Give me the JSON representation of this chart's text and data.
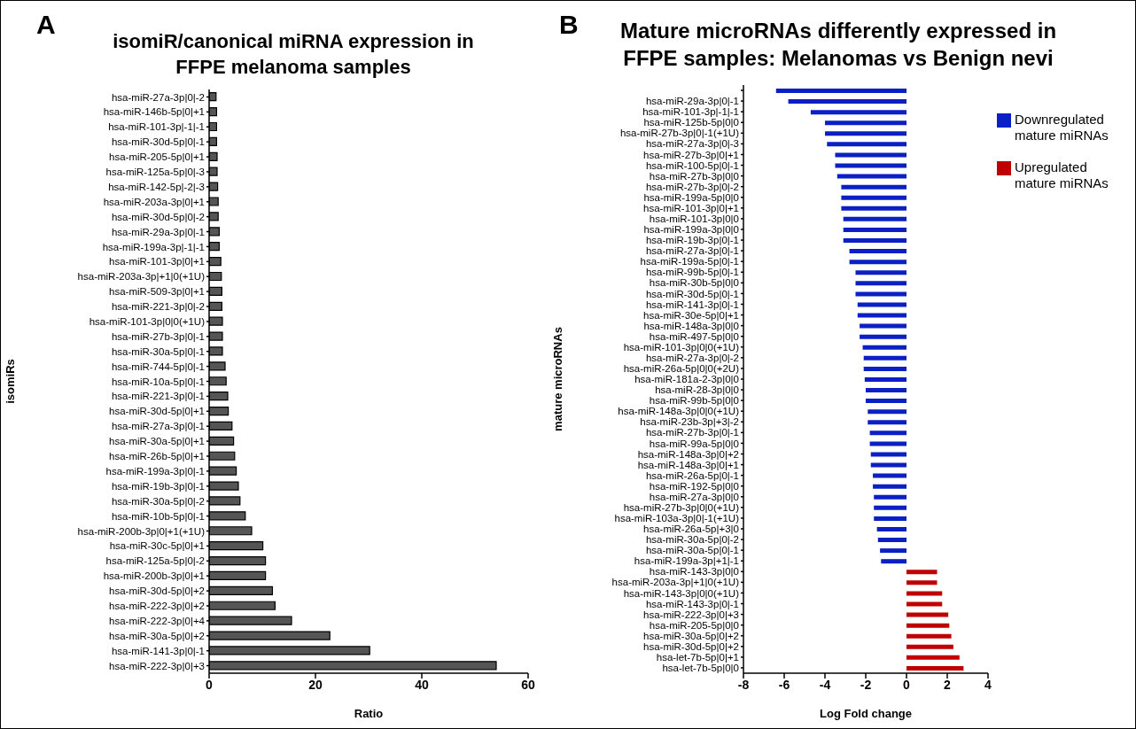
{
  "chart_data": [
    {
      "type": "bar",
      "orientation": "horizontal",
      "title": "isomiR/canonical miRNA expression in FFPE melanoma samples",
      "annotations": [
        "A"
      ],
      "xlabel": "Ratio",
      "ylabel": "isomiRs",
      "categories": [
        "hsa-miR-27a-3p|0|-2",
        "hsa-miR-146b-5p|0|+1",
        "hsa-miR-101-3p|-1|-1",
        "hsa-miR-30d-5p|0|-1",
        "hsa-miR-205-5p|0|+1",
        "hsa-miR-125a-5p|0|-3",
        "hsa-miR-142-5p|-2|-3",
        "hsa-miR-203a-3p|0|+1",
        "hsa-miR-30d-5p|0|-2",
        "hsa-miR-29a-3p|0|-1",
        "hsa-miR-199a-3p|-1|-1",
        "hsa-miR-101-3p|0|+1",
        "hsa-miR-203a-3p|+1|0(+1U)",
        "hsa-miR-509-3p|0|+1",
        "hsa-miR-221-3p|0|-2",
        "hsa-miR-101-3p|0|0(+1U)",
        "hsa-miR-27b-3p|0|-1",
        "hsa-miR-30a-5p|0|-1",
        "hsa-miR-744-5p|0|-1",
        "hsa-miR-10a-5p|0|-1",
        "hsa-miR-221-3p|0|-1",
        "hsa-miR-30d-5p|0|+1",
        "hsa-miR-27a-3p|0|-1",
        "hsa-miR-30a-5p|0|+1",
        "hsa-miR-26b-5p|0|+1",
        "hsa-miR-199a-3p|0|-1",
        "hsa-miR-19b-3p|0|-1",
        "hsa-miR-30a-5p|0|-2",
        "hsa-miR-10b-5p|0|-1",
        "hsa-miR-200b-3p|0|+1(+1U)",
        "hsa-miR-30c-5p|0|+1",
        "hsa-miR-125a-5p|0|-2",
        "hsa-miR-200b-3p|0|+1",
        "hsa-miR-30d-5p|0|+2",
        "hsa-miR-222-3p|0|+2",
        "hsa-miR-222-3p|0|+4",
        "hsa-miR-30a-5p|0|+2",
        "hsa-miR-141-3p|0|-1",
        "hsa-miR-222-3p|0|+3"
      ],
      "values": [
        1.3,
        1.4,
        1.4,
        1.4,
        1.5,
        1.5,
        1.6,
        1.7,
        1.7,
        1.9,
        1.9,
        2.2,
        2.3,
        2.4,
        2.4,
        2.5,
        2.5,
        2.5,
        3.0,
        3.2,
        3.5,
        3.6,
        4.3,
        4.6,
        4.8,
        5.1,
        5.5,
        5.8,
        6.8,
        8.0,
        10.1,
        10.6,
        10.6,
        11.9,
        12.4,
        15.5,
        22.7,
        30.2,
        54.0
      ],
      "color": "#555555",
      "xlim": [
        0,
        60
      ],
      "xticks": [
        0,
        20,
        40,
        60
      ]
    },
    {
      "type": "bar",
      "orientation": "horizontal",
      "stacked": true,
      "title": "Mature microRNAs differently expressed in FFPE samples:  Melanomas vs Benign nevi",
      "annotations": [
        "B"
      ],
      "xlabel": "Log Fold change",
      "ylabel": "mature microRNAs",
      "categories": [
        null,
        "hsa-miR-29a-3p|0|-1",
        "hsa-miR-101-3p|-1|-1",
        "hsa-miR-125b-5p|0|0",
        "hsa-miR-27b-3p|0|-1(+1U)",
        "hsa-miR-27a-3p|0|-3",
        "hsa-miR-27b-3p|0|+1",
        "hsa-miR-100-5p|0|-1",
        "hsa-miR-27b-3p|0|0",
        "hsa-miR-27b-3p|0|-2",
        "hsa-miR-199a-5p|0|0",
        "hsa-miR-101-3p|0|+1",
        "hsa-miR-101-3p|0|0",
        "hsa-miR-199a-3p|0|0",
        "hsa-miR-19b-3p|0|-1",
        "hsa-miR-27a-3p|0|-1",
        "hsa-miR-199a-5p|0|-1",
        "hsa-miR-99b-5p|0|-1",
        "hsa-miR-30b-5p|0|0",
        "hsa-miR-30d-5p|0|-1",
        "hsa-miR-141-3p|0|-1",
        "hsa-miR-30e-5p|0|+1",
        "hsa-miR-148a-3p|0|0",
        "hsa-miR-497-5p|0|0",
        "hsa-miR-101-3p|0|0(+1U)",
        "hsa-miR-27a-3p|0|-2",
        "hsa-miR-26a-5p|0|0(+2U)",
        "hsa-miR-181a-2-3p|0|0",
        "hsa-miR-28-3p|0|0",
        "hsa-miR-99b-5p|0|0",
        "hsa-miR-148a-3p|0|0(+1U)",
        "hsa-miR-23b-3p|+3|-2",
        "hsa-miR-27b-3p|0|-1",
        "hsa-miR-99a-5p|0|0",
        "hsa-miR-148a-3p|0|+2",
        "hsa-miR-148a-3p|0|+1",
        "hsa-miR-26a-5p|0|-1",
        "hsa-miR-192-5p|0|0",
        "hsa-miR-27a-3p|0|0",
        "hsa-miR-27b-3p|0|0(+1U)",
        "hsa-miR-103a-3p|0|-1(+1U)",
        "hsa-miR-26a-5p|+3|0",
        "hsa-miR-30a-5p|0|-2",
        "hsa-miR-30a-5p|0|-1",
        "hsa-miR-199a-3p|+1|-1",
        "hsa-miR-143-3p|0|0",
        "hsa-miR-203a-3p|+1|0(+1U)",
        "hsa-miR-143-3p|0|0(+1U)",
        "hsa-miR-143-3p|0|-1",
        "hsa-miR-222-3p|0|+3",
        "hsa-miR-205-5p|0|0",
        "hsa-miR-30a-5p|0|+2",
        "hsa-miR-30d-5p|0|+2",
        "hsa-let-7b-5p|0|+1",
        "hsa-let-7b-5p|0|0"
      ],
      "series": [
        {
          "name": "Downregulated mature miRNAs",
          "color": "#0a1fc4",
          "values": [
            -6.4,
            -5.8,
            -4.7,
            -4.0,
            -4.0,
            -3.9,
            -3.5,
            -3.5,
            -3.4,
            -3.2,
            -3.2,
            -3.2,
            -3.1,
            -3.1,
            -3.1,
            -2.8,
            -2.8,
            -2.5,
            -2.5,
            -2.5,
            -2.4,
            -2.4,
            -2.3,
            -2.3,
            -2.15,
            -2.1,
            -2.1,
            -2.05,
            -2.0,
            -2.0,
            -1.9,
            -1.9,
            -1.8,
            -1.8,
            -1.75,
            -1.75,
            -1.65,
            -1.65,
            -1.6,
            -1.6,
            -1.6,
            -1.45,
            -1.4,
            -1.3,
            -1.25,
            null,
            null,
            null,
            null,
            null,
            null,
            null,
            null,
            null,
            null
          ]
        },
        {
          "name": "Upregulated mature miRNAs",
          "color": "#c00000",
          "values": [
            null,
            null,
            null,
            null,
            null,
            null,
            null,
            null,
            null,
            null,
            null,
            null,
            null,
            null,
            null,
            null,
            null,
            null,
            null,
            null,
            null,
            null,
            null,
            null,
            null,
            null,
            null,
            null,
            null,
            null,
            null,
            null,
            null,
            null,
            null,
            null,
            null,
            null,
            null,
            null,
            null,
            null,
            null,
            null,
            null,
            1.5,
            1.5,
            1.75,
            1.75,
            2.05,
            2.1,
            2.2,
            2.3,
            2.6,
            2.8
          ]
        }
      ],
      "xlim": [
        -8,
        4
      ],
      "xticks": [
        -8,
        -6,
        -4,
        -2,
        0,
        2,
        4
      ],
      "legend": "top right"
    }
  ]
}
